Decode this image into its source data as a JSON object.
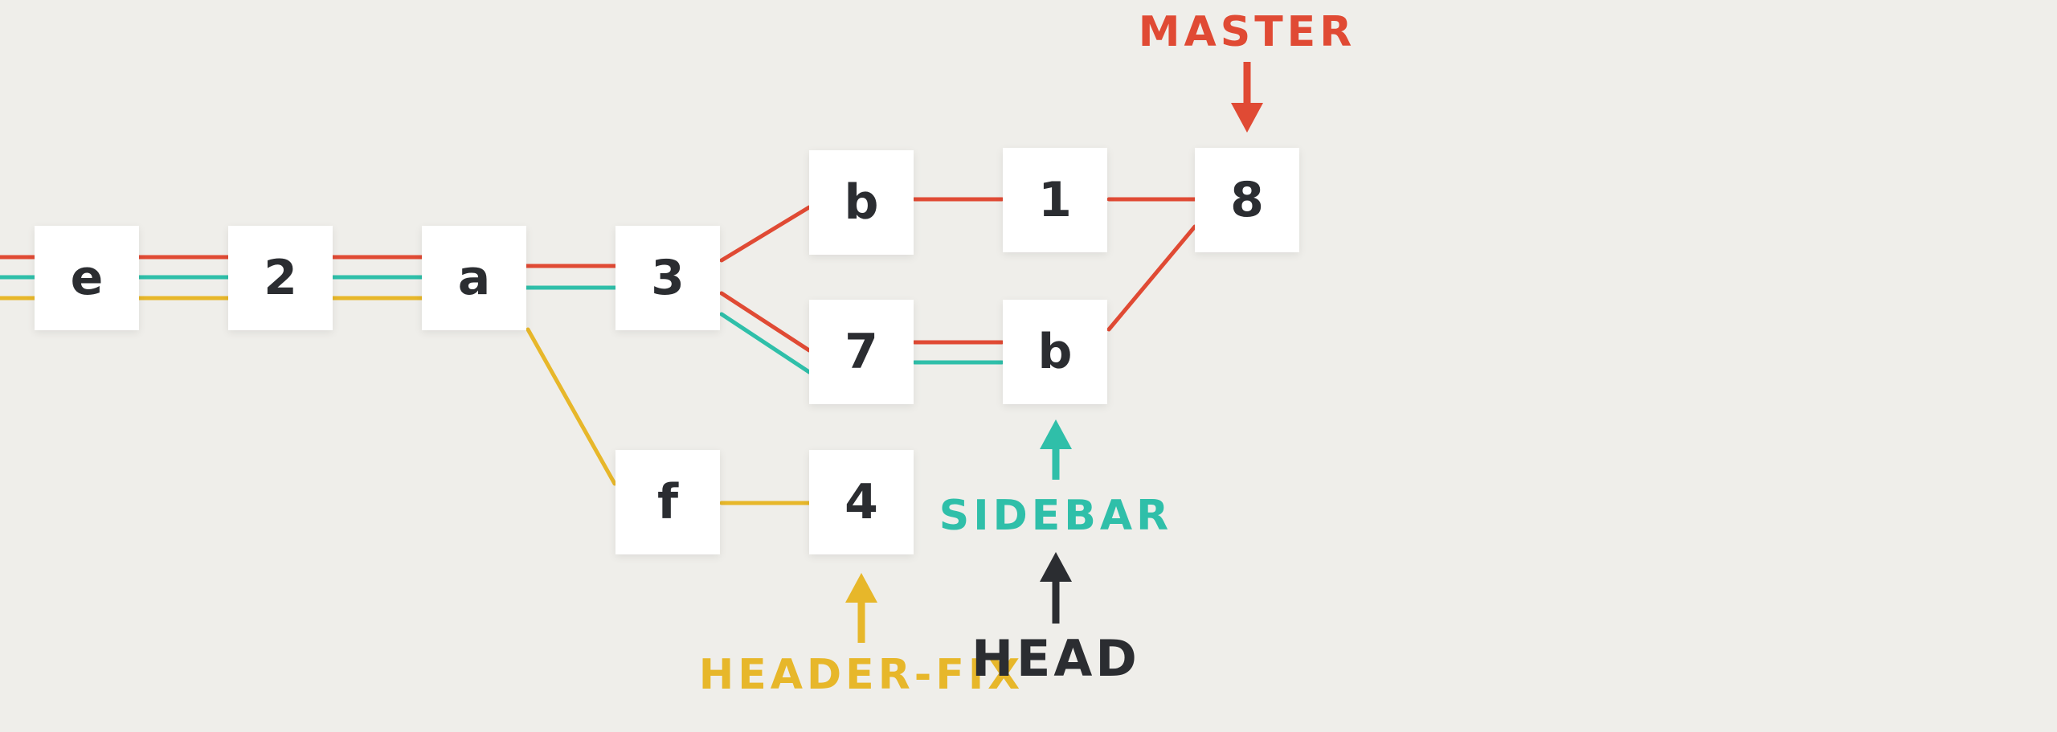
{
  "colors": {
    "master": "#e04a34",
    "sidebar": "#2fbfa9",
    "header_fix": "#e7b72a",
    "head": "#2b2d31"
  },
  "nodes": [
    {
      "id": "e1",
      "label": "e"
    },
    {
      "id": "n2",
      "label": "2"
    },
    {
      "id": "a1",
      "label": "a"
    },
    {
      "id": "n3",
      "label": "3"
    },
    {
      "id": "b1",
      "label": "b"
    },
    {
      "id": "n1",
      "label": "1"
    },
    {
      "id": "n8",
      "label": "8"
    },
    {
      "id": "n7",
      "label": "7"
    },
    {
      "id": "b2",
      "label": "b"
    },
    {
      "id": "f1",
      "label": "f"
    },
    {
      "id": "n4",
      "label": "4"
    }
  ],
  "branches": {
    "master": {
      "label": "MASTER",
      "points_to": "8",
      "icon": "arrow-down-icon"
    },
    "sidebar": {
      "label": "SIDEBAR",
      "points_to": "b",
      "icon": "arrow-up-icon"
    },
    "header_fix": {
      "label": "HEADER-FIX",
      "points_to": "4",
      "icon": "arrow-up-icon"
    },
    "head": {
      "label": "HEAD",
      "points_to": "SIDEBAR",
      "icon": "arrow-up-icon"
    }
  }
}
